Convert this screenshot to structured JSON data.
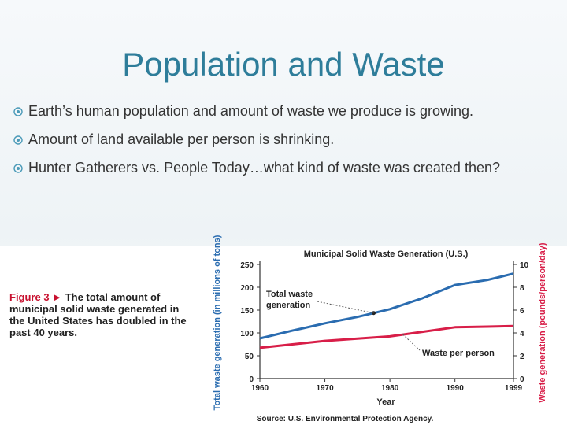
{
  "slide": {
    "title": "Population and Waste",
    "bullets": [
      "Earth’s human population and amount of waste we produce is growing.",
      "Amount of land available per person is shrinking.",
      "Hunter Gatherers vs. People Today…what kind of waste was created then?"
    ]
  },
  "figure": {
    "label": "Figure 3",
    "arrow": "►",
    "text": "The total amount of municipal solid waste generated in the United States has doubled in the past 40 years.",
    "source": "Source: U.S. Environmental Protection Agency."
  },
  "colors": {
    "title": "#2e7d9a",
    "total_line": "#2a6cb0",
    "per_person_line": "#d81e48",
    "caption_accent": "#c8102e",
    "axis_label_right": "#d81e48"
  },
  "chart_data": {
    "type": "line",
    "title": "Municipal Solid Waste Generation (U.S.)",
    "xlabel": "Year",
    "ylabel_left": "Total waste generation (in millions of tons)",
    "ylabel_right": "Waste generation (pounds/person/day)",
    "x_ticks": [
      "1960",
      "1970",
      "1980",
      "1990",
      "1999"
    ],
    "x_range": [
      1960,
      1999
    ],
    "y_left_range": [
      0,
      250
    ],
    "y_left_ticks": [
      "0",
      "50",
      "100",
      "150",
      "200",
      "250"
    ],
    "y_right_range": [
      0,
      10
    ],
    "y_right_ticks": [
      "0",
      "2",
      "4",
      "6",
      "8",
      "10"
    ],
    "grid": false,
    "series": [
      {
        "name": "Total waste generation",
        "axis": "left",
        "x": [
          1960,
          1965,
          1970,
          1975,
          1980,
          1985,
          1990,
          1995,
          1999
        ],
        "values": [
          88,
          105,
          121,
          135,
          152,
          176,
          205,
          216,
          230
        ]
      },
      {
        "name": "Waste per person",
        "axis": "right",
        "x": [
          1960,
          1965,
          1970,
          1975,
          1980,
          1985,
          1990,
          1995,
          1999
        ],
        "values": [
          2.7,
          3.0,
          3.3,
          3.5,
          3.7,
          4.1,
          4.5,
          4.55,
          4.6
        ]
      }
    ],
    "annotations": [
      {
        "text": "Total waste generation",
        "series": 0,
        "at_x": 1977.5
      },
      {
        "text": "Waste per person",
        "series": 1,
        "at_x": 1982
      }
    ]
  }
}
